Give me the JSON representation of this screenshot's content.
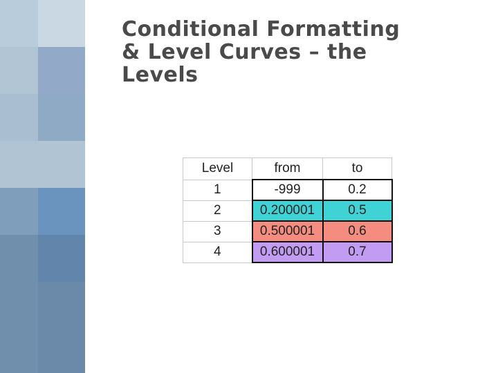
{
  "slide": {
    "title_lines": [
      "Conditional Formatting",
      "& Level Curves – the",
      "Levels"
    ]
  },
  "table": {
    "headers": [
      "Level",
      "from",
      "to"
    ],
    "rows": [
      {
        "level": "1",
        "from": "-999",
        "to": "0.2",
        "color": "#ffffff"
      },
      {
        "level": "2",
        "from": "0.200001",
        "to": "0.5",
        "color": "#3fd3d6"
      },
      {
        "level": "3",
        "from": "0.500001",
        "to": "0.6",
        "color": "#f48c80"
      },
      {
        "level": "4",
        "from": "0.600001",
        "to": "0.7",
        "color": "#c19cf2"
      }
    ]
  },
  "colors": {
    "title_text": "#4a4a4a",
    "strip_tiles": [
      "#b7cad8",
      "#c6d6e1",
      "#8fa8c6",
      "#8ea9c3",
      "#b3c7d6",
      "#6e8fb0",
      "#5f84aa",
      "#6f8eaa"
    ]
  }
}
